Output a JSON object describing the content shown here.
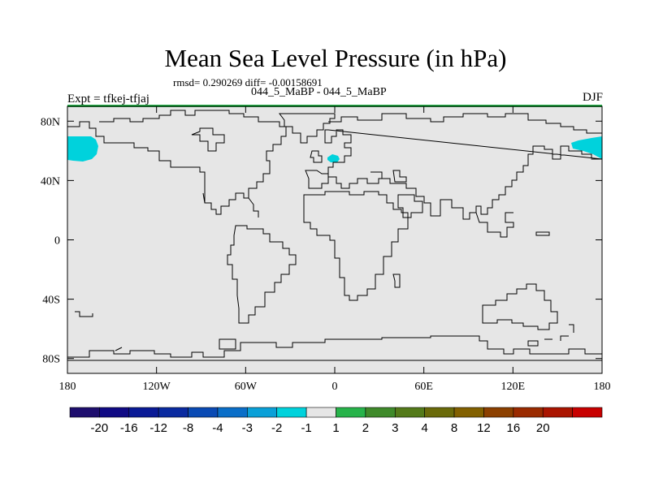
{
  "header": {
    "title": "Mean Sea Level Pressure (in hPa)",
    "stats": "rmsd= 0.290269 diff= -0.00158691",
    "subtitle": "044_5_MaBP - 044_5_MaBP",
    "left_label": "Expt = tfkej-tfjaj",
    "right_label": "DJF"
  },
  "map": {
    "projection": "cylindrical-equidistant",
    "lon_range": [
      -180,
      180
    ],
    "lat_range": [
      -90,
      90
    ],
    "background_color": "#e6e6e6",
    "coastline_color": "#000000",
    "lon_ticks": [
      {
        "value": -180,
        "label": "180"
      },
      {
        "value": -120,
        "label": "120W"
      },
      {
        "value": -60,
        "label": "60W"
      },
      {
        "value": 0,
        "label": "0"
      },
      {
        "value": 60,
        "label": "60E"
      },
      {
        "value": 120,
        "label": "120E"
      },
      {
        "value": 180,
        "label": "180"
      }
    ],
    "lat_ticks": [
      {
        "value": 80,
        "label": "80N"
      },
      {
        "value": 40,
        "label": "40N"
      },
      {
        "value": 0,
        "label": "0"
      },
      {
        "value": -40,
        "label": "40S"
      },
      {
        "value": -80,
        "label": "80S"
      }
    ],
    "anomaly_regions": [
      {
        "name": "north-pacific-west-anomaly",
        "range": "-2 to -1",
        "color": "#00d2dc"
      },
      {
        "name": "north-atlantic-anomaly",
        "range": "-2 to -1",
        "color": "#00d2dc"
      },
      {
        "name": "north-pacific-east-anomaly",
        "range": "-2 to -1",
        "color": "#00d2dc"
      },
      {
        "name": "north-pole-band",
        "range": "1 to 2",
        "color": "#27b34a"
      }
    ]
  },
  "colorbar": {
    "colors": [
      "#1e0e6e",
      "#100a84",
      "#0a1a96",
      "#0a2aa0",
      "#0a4ab4",
      "#0a6ec8",
      "#0aa0d8",
      "#00d2dc",
      "#e6e6e6",
      "#27b34a",
      "#3f8a2a",
      "#547a1a",
      "#6a6a0a",
      "#826000",
      "#8c4000",
      "#9a2a00",
      "#aa1400",
      "#c80000"
    ],
    "labels": [
      "-20",
      "-16",
      "-12",
      "-8",
      "-4",
      "-3",
      "-2",
      "-1",
      "1",
      "2",
      "3",
      "4",
      "8",
      "12",
      "16",
      "20"
    ]
  }
}
